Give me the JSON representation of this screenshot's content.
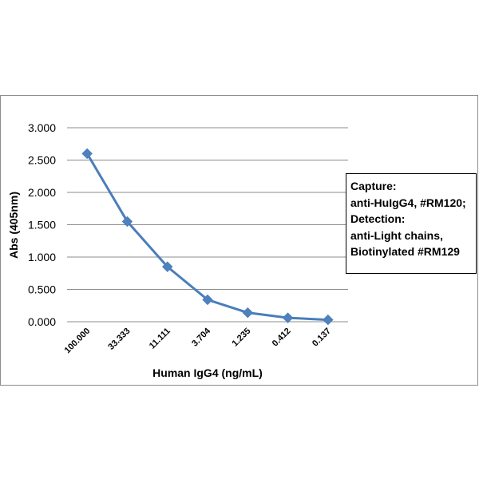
{
  "chart_data": {
    "type": "line",
    "categories": [
      "100.000",
      "33.333",
      "11.111",
      "3.704",
      "1.235",
      "0.412",
      "0.137"
    ],
    "values": [
      2.6,
      1.55,
      0.85,
      0.34,
      0.14,
      0.06,
      0.03
    ],
    "xlabel": "Human IgG4 (ng/mL)",
    "ylabel": "Abs (405nm)",
    "ylim": [
      0,
      3
    ],
    "y_ticks": [
      "0.000",
      "0.500",
      "1.000",
      "1.500",
      "2.000",
      "2.500",
      "3.000"
    ],
    "grid": true,
    "marker": "diamond",
    "line_color": "#4a7ebb",
    "marker_color": "#4f81bd",
    "grid_color": "#8c8c8c",
    "legend_placement": "right",
    "annotation_lines": [
      "Capture:",
      "anti-HuIgG4, #RM120;",
      "Detection:",
      "anti-Light chains,",
      "Biotinylated #RM129"
    ]
  }
}
